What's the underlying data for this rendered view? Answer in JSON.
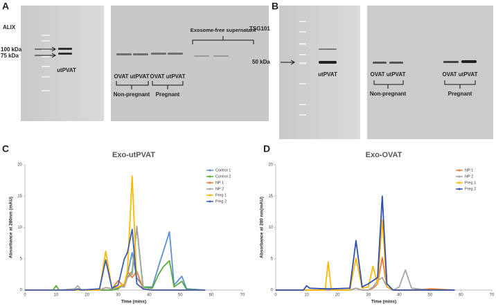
{
  "panels": {
    "a": {
      "letter": "A",
      "protein": "ALIX",
      "markers": [
        "100 kDa",
        "75 kDa"
      ],
      "lane_label": "utPVAT",
      "supernatant": "Exosome-free supernatant",
      "pair1": "OVAT utPVAT",
      "pair2": "OVAT utPVAT",
      "group1": "Non-pregnant",
      "group2": "Pregnant"
    },
    "b": {
      "letter": "B",
      "protein": "TSG101",
      "marker": "50 kDa",
      "lane_label": "utPVAT",
      "pair1": "OVAT utPVAT",
      "group1": "Non-pregnant",
      "group2": "Pregnant"
    },
    "c": {
      "letter": "C"
    },
    "d": {
      "letter": "D"
    }
  },
  "chart_data": [
    {
      "type": "line",
      "title": "Exo-utPVAT",
      "x_label": "Time (mins)",
      "y_label": "Absorbance at 280nm (mAU)",
      "x": [
        0,
        9,
        10,
        11,
        16,
        17,
        18,
        24,
        26,
        28,
        30,
        32,
        33,
        34.5,
        36,
        38,
        41,
        43,
        44.5,
        46.5,
        48,
        50.5,
        52,
        58
      ],
      "series": [
        {
          "name": "Control 1",
          "color": "#5b8fd6",
          "values": [
            0,
            0,
            0,
            0,
            0,
            0,
            0,
            0,
            0,
            0,
            0.3,
            1,
            2.5,
            6,
            2,
            0.5,
            0.5,
            3.8,
            6.1,
            9.3,
            0.8,
            2.2,
            0.2,
            0
          ]
        },
        {
          "name": "Control 2",
          "color": "#5aaa3a",
          "values": [
            0,
            0,
            0.7,
            0,
            0,
            0,
            0,
            0,
            0,
            0,
            0.2,
            1,
            2,
            3,
            10.1,
            0.5,
            0.3,
            2.5,
            3.7,
            4.7,
            0.5,
            1.4,
            0.1,
            0
          ]
        },
        {
          "name": "NP 1",
          "color": "#ed7d31",
          "values": [
            0,
            0,
            0,
            0,
            0,
            0,
            0,
            0,
            0.4,
            0.2,
            1.5,
            0.5,
            3,
            2,
            3,
            0.2,
            0,
            0,
            0,
            0,
            0,
            0,
            0,
            0
          ]
        },
        {
          "name": "NP 2",
          "color": "#a5a5a5",
          "values": [
            0,
            0,
            0,
            0,
            0.2,
            0.7,
            0.1,
            0,
            0.4,
            0.2,
            0.5,
            0.5,
            2,
            2.5,
            10.2,
            0.2,
            0,
            0,
            0,
            0,
            0,
            0,
            0,
            0
          ]
        },
        {
          "name": "Preg 1",
          "color": "#ffb800",
          "values": [
            0,
            0,
            0,
            0,
            0,
            0,
            0,
            0,
            6.2,
            0.3,
            0.5,
            1,
            3,
            18.2,
            1,
            0.2,
            0,
            0,
            0,
            0,
            0,
            0,
            0,
            0
          ]
        },
        {
          "name": "Preg 2",
          "color": "#3c5fb5",
          "values": [
            0,
            0,
            0,
            0,
            0,
            0.2,
            0,
            0.2,
            4.8,
            0.3,
            0.8,
            5,
            6,
            9.7,
            1,
            0.2,
            0,
            0,
            0,
            0,
            0,
            0,
            0,
            0
          ]
        }
      ],
      "xlim": [
        0,
        70
      ],
      "xticks": [
        0,
        10,
        20,
        30,
        40,
        50,
        60,
        70
      ],
      "ylim": [
        0,
        20
      ],
      "yticks": [
        0,
        5,
        10,
        15,
        20
      ],
      "legend": "upper right",
      "grid": false
    },
    {
      "type": "line",
      "title": "Exo-OVAT",
      "x_label": "Time (mins)",
      "y_label": "Absorbance at 280 nm(mAU)",
      "x": [
        0,
        9,
        10,
        11,
        16,
        17,
        18,
        24,
        26,
        28,
        30,
        31.5,
        33,
        34.5,
        36,
        38,
        40,
        42,
        44,
        50,
        58
      ],
      "series": [
        {
          "name": "NP 1",
          "color": "#ed7d31",
          "values": [
            0,
            0,
            0,
            0,
            0,
            0,
            0,
            0,
            0.3,
            0,
            0,
            0.3,
            1,
            5.2,
            0.5,
            0,
            0,
            0,
            0,
            0.2,
            0
          ]
        },
        {
          "name": "NP 2",
          "color": "#a5a5a5",
          "values": [
            0,
            0,
            0,
            0,
            0,
            0,
            0,
            0,
            0.3,
            0,
            0,
            0.5,
            1.5,
            2,
            0.5,
            0,
            0.5,
            3.2,
            0.3,
            0,
            0
          ]
        },
        {
          "name": "Preg 1",
          "color": "#ffb800",
          "values": [
            0,
            0,
            0,
            0,
            0,
            4.5,
            0,
            0,
            5.1,
            0.3,
            0.5,
            3.8,
            1,
            11.2,
            0.5,
            0,
            0,
            0,
            0,
            0,
            0
          ]
        },
        {
          "name": "Preg 2",
          "color": "#2f4fb0",
          "values": [
            0,
            0,
            0.7,
            0.3,
            0.2,
            0.2,
            0.2,
            0.3,
            7.9,
            0.5,
            1,
            1.5,
            2,
            15,
            1,
            0,
            0,
            0,
            0,
            0,
            0
          ]
        }
      ],
      "xlim": [
        0,
        70
      ],
      "xticks": [
        0,
        10,
        20,
        30,
        40,
        50,
        60,
        70
      ],
      "ylim": [
        0,
        20
      ],
      "yticks": [
        0,
        5,
        10,
        15,
        20
      ],
      "legend": "upper right",
      "grid": false
    }
  ]
}
